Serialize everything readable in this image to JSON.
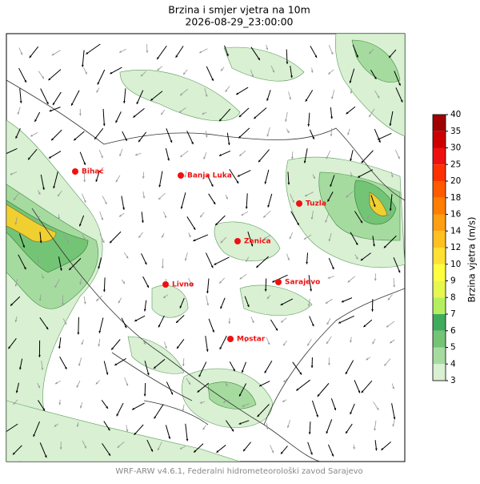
{
  "header": {
    "title": "Brzina i smjer vjetra na 10m",
    "subtitle": "2026-08-29_23:00:00"
  },
  "map": {
    "cities": [
      {
        "name": "Bihać"
      },
      {
        "name": "Banja Luka"
      },
      {
        "name": "Tuzla"
      },
      {
        "name": "Zenica"
      },
      {
        "name": "Livno"
      },
      {
        "name": "Sarajevo"
      },
      {
        "name": "Mostar"
      }
    ],
    "city_color": "#ee1111"
  },
  "colorbar": {
    "label": "Brzina vjetra (m/s)",
    "levels": [
      3,
      4,
      5,
      6,
      7,
      8,
      9,
      10,
      12,
      14,
      16,
      18,
      20,
      25,
      30,
      35,
      40
    ],
    "colors": [
      "#d9f0d3",
      "#a6dba0",
      "#74c476",
      "#41ab5d",
      "#b5ef5f",
      "#e6f750",
      "#ffff40",
      "#ffe033",
      "#ffc020",
      "#ff9e10",
      "#ff7d00",
      "#ff5a00",
      "#ff3000",
      "#ee1010",
      "#cc0000",
      "#a00000"
    ]
  },
  "footer": "WRF-ARW v4.6.1, Federalni hidrometeorološki zavod Sarajevo"
}
